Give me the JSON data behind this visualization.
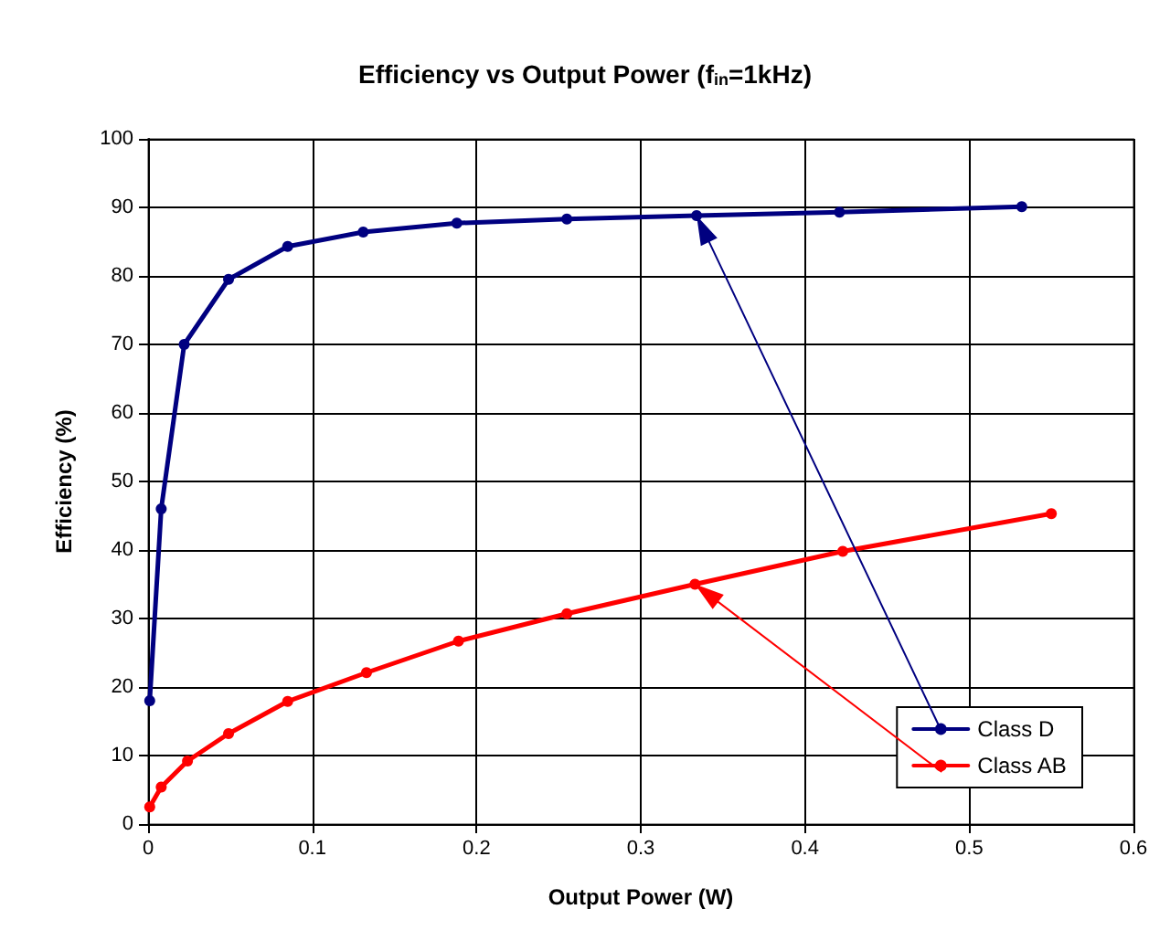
{
  "chart_data": {
    "type": "line",
    "title": "Efficiency vs Output Power (f$_{in}$=1kHz)",
    "xlabel": "Output Power (W)",
    "ylabel": "Efficiency (%)",
    "series": [
      {
        "name": "Class D",
        "color": "#000080",
        "x": [
          0.001,
          0.008,
          0.022,
          0.049,
          0.085,
          0.131,
          0.188,
          0.255,
          0.334,
          0.421,
          0.532
        ],
        "values": [
          18,
          46,
          70,
          79.5,
          84.3,
          86.4,
          87.7,
          88.3,
          88.8,
          89.3,
          90.1
        ]
      },
      {
        "name": "Class AB",
        "color": "#ff0000",
        "x": [
          0.001,
          0.008,
          0.024,
          0.049,
          0.085,
          0.133,
          0.189,
          0.255,
          0.333,
          0.423,
          0.55
        ],
        "values": [
          2.5,
          5.4,
          9.2,
          13.2,
          17.9,
          22.1,
          26.7,
          30.7,
          35,
          39.8,
          45.3
        ]
      }
    ],
    "xlim": [
      0,
      0.6
    ],
    "xticks": [
      0,
      0.1,
      0.2,
      0.3,
      0.4,
      0.5,
      0.6
    ],
    "ylim": [
      0,
      100
    ],
    "yticks": [
      0,
      10,
      20,
      30,
      40,
      50,
      60,
      70,
      80,
      90,
      100
    ],
    "grid": true,
    "legend": "bottom right",
    "marker": "circle",
    "line_style": "solid"
  }
}
